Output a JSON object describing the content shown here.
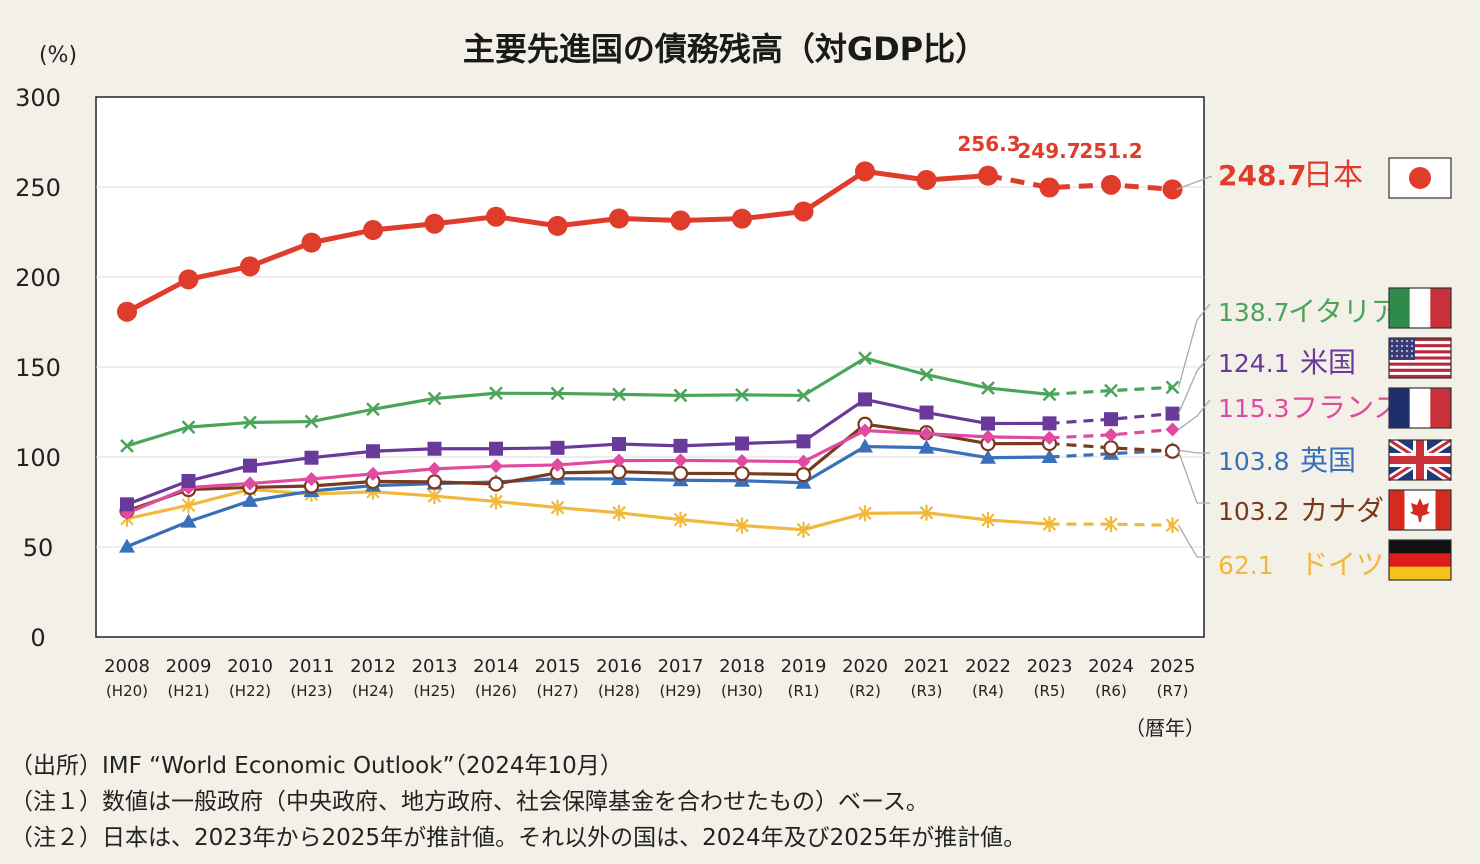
{
  "chart_data": {
    "type": "line",
    "title": "主要先進国の債務残高（対GDP比）",
    "ylabel": "(%)",
    "xlabel": "（暦年）",
    "ylim": [
      0,
      300
    ],
    "yticks": [
      "0",
      "50",
      "100",
      "150",
      "200",
      "250",
      "300"
    ],
    "grid": true,
    "categories": [
      "2008",
      "2009",
      "2010",
      "2011",
      "2012",
      "2013",
      "2014",
      "2015",
      "2016",
      "2017",
      "2018",
      "2019",
      "2020",
      "2021",
      "2022",
      "2023",
      "2024",
      "2025"
    ],
    "subcategories": [
      "(H20)",
      "(H21)",
      "(H22)",
      "(H23)",
      "(H24)",
      "(H25)",
      "(H26)",
      "(H27)",
      "(H28)",
      "(H29)",
      "(H30)",
      "(R1)",
      "(R2)",
      "(R3)",
      "(R4)",
      "(R5)",
      "(R6)",
      "(R7)"
    ],
    "series": [
      {
        "name": "日本",
        "color": "#e03c2c",
        "marker": "circle",
        "estimate_from": 15,
        "final_label": "248.7",
        "values": [
          180.7,
          198.7,
          205.9,
          219.1,
          226.1,
          229.6,
          233.5,
          228.4,
          232.5,
          231.4,
          232.4,
          236.4,
          258.7,
          253.9,
          256.3,
          249.7,
          251.2,
          248.7
        ]
      },
      {
        "name": "イタリア",
        "color": "#4aa55a",
        "marker": "x",
        "estimate_from": 16,
        "final_label": "138.7",
        "values": [
          106.2,
          116.6,
          119.2,
          119.7,
          126.5,
          132.5,
          135.4,
          135.3,
          134.8,
          134.2,
          134.5,
          134.2,
          154.9,
          145.7,
          138.3,
          134.8,
          136.9,
          138.7
        ]
      },
      {
        "name": "米国",
        "color": "#6a3a9a",
        "marker": "square",
        "estimate_from": 16,
        "final_label": "124.1",
        "values": [
          73.7,
          86.7,
          95.2,
          99.6,
          103.2,
          104.6,
          104.6,
          105.1,
          107.2,
          106.2,
          107.5,
          108.7,
          132.0,
          124.7,
          118.6,
          118.7,
          121.0,
          124.1
        ]
      },
      {
        "name": "フランス",
        "color": "#e04aa0",
        "marker": "diamond",
        "estimate_from": 16,
        "final_label": "115.3",
        "values": [
          68.8,
          83.0,
          85.3,
          87.8,
          90.6,
          93.4,
          94.9,
          95.6,
          98.0,
          98.1,
          97.8,
          97.4,
          114.7,
          112.9,
          111.2,
          110.6,
          112.3,
          115.3
        ]
      },
      {
        "name": "英国",
        "color": "#3a70b8",
        "marker": "triangle",
        "estimate_from": 16,
        "final_label": "103.8",
        "values": [
          50.2,
          64.1,
          75.6,
          81.1,
          84.1,
          85.2,
          86.1,
          87.9,
          87.8,
          87.1,
          86.8,
          85.7,
          105.8,
          105.2,
          99.6,
          100.0,
          101.8,
          103.8
        ]
      },
      {
        "name": "カナダ",
        "color": "#7a3a1e",
        "marker": "circle-open",
        "estimate_from": 16,
        "final_label": "103.2",
        "values": [
          70.1,
          81.9,
          83.1,
          83.9,
          86.4,
          86.2,
          85.0,
          91.2,
          91.8,
          90.9,
          90.8,
          90.2,
          118.2,
          113.5,
          107.4,
          107.5,
          105.1,
          103.2
        ]
      },
      {
        "name": "ドイツ",
        "color": "#f0b83c",
        "marker": "star",
        "estimate_from": 16,
        "final_label": "62.1",
        "values": [
          65.7,
          73.2,
          82.0,
          79.4,
          80.7,
          78.3,
          75.3,
          71.9,
          69.0,
          65.2,
          61.9,
          59.6,
          68.7,
          69.0,
          65.0,
          62.7,
          62.7,
          62.1
        ]
      }
    ],
    "annotations": [
      {
        "text": "256.3",
        "x": "2022",
        "y": 256.3
      },
      {
        "text": "249.7",
        "x": "2023",
        "y": 249.7
      },
      {
        "text": "251.2",
        "x": "2024",
        "y": 251.2
      }
    ]
  },
  "notes": [
    "（出所）IMF “World Economic Outlook”（2024年10月）",
    "（注１）数値は一般政府（中央政府、地方政府、社会保障基金を合わせたもの）ベース。",
    "（注２）日本は、2023年から2025年が推計値。それ以外の国は、2024年及び2025年が推計値。"
  ],
  "flags": [
    "japan-flag-icon",
    "italy-flag-icon",
    "usa-flag-icon",
    "france-flag-icon",
    "uk-flag-icon",
    "canada-flag-icon",
    "germany-flag-icon"
  ]
}
